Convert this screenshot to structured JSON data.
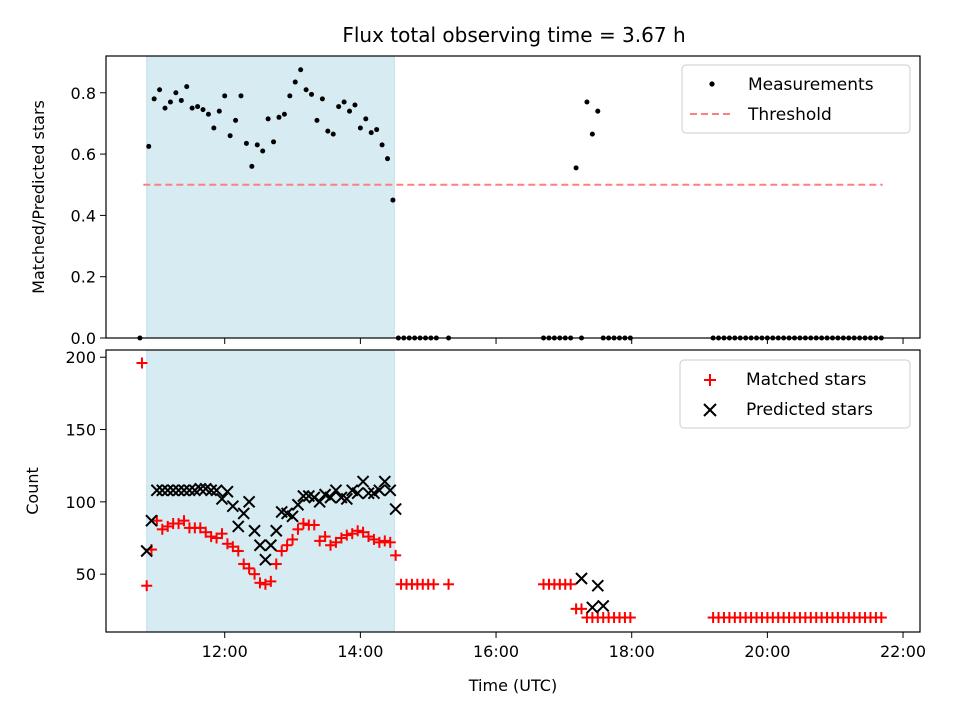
{
  "chart_data": {
    "title": "Flux total observing time = 3.67 h",
    "xlabel": "Time (UTC)",
    "x_unit": "hours (UTC)",
    "xlim": [
      10.25,
      22.25
    ],
    "xticks": [
      {
        "value": 12,
        "label": "12:00"
      },
      {
        "value": 14,
        "label": "14:00"
      },
      {
        "value": 16,
        "label": "16:00"
      },
      {
        "value": 18,
        "label": "18:00"
      },
      {
        "value": 20,
        "label": "20:00"
      },
      {
        "value": 22,
        "label": "22:00"
      }
    ],
    "shaded_span": {
      "x": [
        10.85,
        14.5
      ],
      "color": "#add8e6"
    },
    "panels": [
      {
        "type": "scatter",
        "ylabel": "Matched/Predicted stars",
        "ylim": [
          0,
          0.92
        ],
        "yticks": [
          {
            "value": 0.0,
            "label": "0.0"
          },
          {
            "value": 0.2,
            "label": "0.2"
          },
          {
            "value": 0.4,
            "label": "0.4"
          },
          {
            "value": 0.6,
            "label": "0.6"
          },
          {
            "value": 0.8,
            "label": "0.8"
          }
        ],
        "legend": {
          "position": "top-right"
        },
        "series": [
          {
            "name": "Measurements",
            "marker": "dot",
            "color": "#000000",
            "x": [
              10.75,
              10.88,
              10.96,
              11.04,
              11.12,
              11.2,
              11.28,
              11.36,
              11.44,
              11.52,
              11.6,
              11.68,
              11.76,
              11.84,
              11.92,
              12.0,
              12.08,
              12.16,
              12.24,
              12.32,
              12.4,
              12.48,
              12.56,
              12.64,
              12.72,
              12.8,
              12.88,
              12.96,
              13.04,
              13.12,
              13.2,
              13.28,
              13.36,
              13.44,
              13.52,
              13.6,
              13.68,
              13.76,
              13.84,
              13.92,
              14.0,
              14.08,
              14.16,
              14.24,
              14.32,
              14.4,
              14.48,
              14.56,
              14.64,
              14.72,
              14.8,
              14.88,
              14.96,
              15.04,
              15.12,
              15.3,
              16.7,
              16.78,
              16.86,
              16.94,
              17.02,
              17.1,
              17.18,
              17.26,
              17.34,
              17.42,
              17.5,
              17.58,
              17.66,
              17.74,
              17.82,
              17.9,
              17.98,
              19.2,
              19.28,
              19.36,
              19.44,
              19.52,
              19.6,
              19.68,
              19.76,
              19.84,
              19.92,
              20.0,
              20.08,
              20.16,
              20.24,
              20.32,
              20.4,
              20.48,
              20.56,
              20.64,
              20.72,
              20.8,
              20.88,
              20.96,
              21.04,
              21.12,
              21.2,
              21.28,
              21.36,
              21.44,
              21.52,
              21.6,
              21.68
            ],
            "y": [
              0.0,
              0.625,
              0.78,
              0.81,
              0.75,
              0.77,
              0.8,
              0.775,
              0.82,
              0.75,
              0.755,
              0.745,
              0.73,
              0.685,
              0.74,
              0.79,
              0.66,
              0.71,
              0.79,
              0.635,
              0.56,
              0.63,
              0.61,
              0.715,
              0.64,
              0.72,
              0.73,
              0.79,
              0.835,
              0.875,
              0.81,
              0.795,
              0.71,
              0.78,
              0.675,
              0.665,
              0.755,
              0.77,
              0.74,
              0.76,
              0.685,
              0.715,
              0.67,
              0.68,
              0.63,
              0.585,
              0.45,
              0.0,
              0.0,
              0.0,
              0.0,
              0.0,
              0.0,
              0.0,
              0.0,
              0.0,
              0.0,
              0.0,
              0.0,
              0.0,
              0.0,
              0.0,
              0.555,
              0.0,
              0.77,
              0.665,
              0.74,
              0.0,
              0.0,
              0.0,
              0.0,
              0.0,
              0.0,
              0.0,
              0.0,
              0.0,
              0.0,
              0.0,
              0.0,
              0.0,
              0.0,
              0.0,
              0.0,
              0.0,
              0.0,
              0.0,
              0.0,
              0.0,
              0.0,
              0.0,
              0.0,
              0.0,
              0.0,
              0.0,
              0.0,
              0.0,
              0.0,
              0.0,
              0.0,
              0.0,
              0.0,
              0.0,
              0.0,
              0.0,
              0.0
            ]
          },
          {
            "name": "Threshold",
            "type": "line",
            "style": "dashed",
            "color": "#ff7f7f",
            "x": [
              10.8,
              21.7
            ],
            "y": [
              0.5,
              0.5
            ]
          }
        ]
      },
      {
        "type": "scatter",
        "ylabel": "Count",
        "ylim": [
          10,
          205
        ],
        "yticks": [
          {
            "value": 50,
            "label": "50"
          },
          {
            "value": 100,
            "label": "100"
          },
          {
            "value": 150,
            "label": "150"
          },
          {
            "value": 200,
            "label": "200"
          }
        ],
        "legend": {
          "position": "top-right"
        },
        "series": [
          {
            "name": "Matched stars",
            "marker": "plus",
            "color": "#ff0000",
            "x": [
              10.78,
              10.85,
              10.92,
              11.0,
              11.08,
              11.16,
              11.24,
              11.32,
              11.4,
              11.48,
              11.56,
              11.64,
              11.72,
              11.8,
              11.88,
              11.96,
              12.04,
              12.12,
              12.2,
              12.28,
              12.36,
              12.44,
              12.52,
              12.6,
              12.68,
              12.76,
              12.84,
              12.92,
              13.0,
              13.08,
              13.16,
              13.24,
              13.32,
              13.4,
              13.48,
              13.56,
              13.64,
              13.72,
              13.8,
              13.88,
              13.96,
              14.04,
              14.12,
              14.2,
              14.28,
              14.36,
              14.44,
              14.52,
              14.6,
              14.68,
              14.76,
              14.84,
              14.92,
              15.0,
              15.08,
              15.3,
              16.7,
              16.78,
              16.86,
              16.94,
              17.02,
              17.1,
              17.18,
              17.26,
              17.34,
              17.42,
              17.5,
              17.58,
              17.66,
              17.74,
              17.82,
              17.9,
              17.98,
              19.2,
              19.28,
              19.36,
              19.44,
              19.52,
              19.6,
              19.68,
              19.76,
              19.84,
              19.92,
              20.0,
              20.08,
              20.16,
              20.24,
              20.32,
              20.4,
              20.48,
              20.56,
              20.64,
              20.72,
              20.8,
              20.88,
              20.96,
              21.04,
              21.12,
              21.2,
              21.28,
              21.36,
              21.44,
              21.52,
              21.6,
              21.68
            ],
            "y": [
              196,
              42,
              67,
              87,
              81,
              83,
              85,
              85,
              87,
              82,
              82,
              82,
              79,
              76,
              75,
              78,
              71,
              69,
              66,
              57,
              54,
              50,
              44,
              43,
              45,
              57,
              66,
              70,
              74,
              81,
              85,
              84,
              84,
              73,
              76,
              70,
              72,
              75,
              77,
              78,
              80,
              79,
              76,
              74,
              72,
              73,
              72,
              63,
              43,
              43,
              43,
              43,
              43,
              43,
              43,
              43,
              43,
              43,
              43,
              43,
              43,
              43,
              26,
              26,
              20,
              20,
              20,
              20,
              20,
              20,
              20,
              20,
              20,
              20,
              20,
              20,
              20,
              20,
              20,
              20,
              20,
              20,
              20,
              20,
              20,
              20,
              20,
              20,
              20,
              20,
              20,
              20,
              20,
              20,
              20,
              20,
              20,
              20,
              20,
              20,
              20,
              20,
              20,
              20,
              20
            ]
          },
          {
            "name": "Predicted stars",
            "marker": "cross",
            "color": "#000000",
            "x": [
              10.85,
              10.92,
              11.0,
              11.08,
              11.16,
              11.24,
              11.32,
              11.4,
              11.48,
              11.56,
              11.64,
              11.72,
              11.8,
              11.88,
              11.96,
              12.04,
              12.12,
              12.2,
              12.28,
              12.36,
              12.44,
              12.52,
              12.6,
              12.68,
              12.76,
              12.84,
              12.92,
              13.0,
              13.08,
              13.16,
              13.24,
              13.32,
              13.4,
              13.48,
              13.56,
              13.64,
              13.72,
              13.8,
              13.88,
              13.96,
              14.04,
              14.12,
              14.2,
              14.28,
              14.36,
              14.44,
              14.52,
              17.26,
              17.42,
              17.5,
              17.58
            ],
            "y": [
              66,
              87,
              108,
              108,
              108,
              108,
              108,
              108,
              108,
              108,
              109,
              109,
              108,
              108,
              102,
              107,
              97,
              83,
              92,
              100,
              80,
              70,
              60,
              70,
              80,
              93,
              92,
              90,
              98,
              104,
              104,
              103,
              100,
              105,
              103,
              108,
              103,
              102,
              108,
              106,
              114,
              106,
              106,
              108,
              114,
              108,
              95,
              47,
              27,
              42,
              28
            ]
          }
        ]
      }
    ]
  }
}
